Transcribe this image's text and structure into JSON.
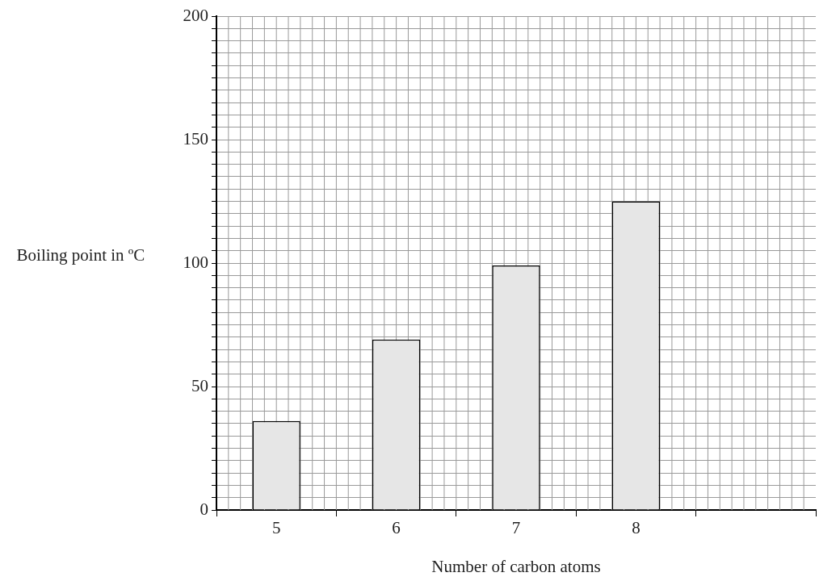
{
  "chart_data": {
    "type": "bar",
    "xlabel": "Number of carbon atoms",
    "ylabel": "Boiling point in ºC",
    "categories": [
      "5",
      "6",
      "7",
      "8",
      null
    ],
    "values": [
      36,
      69,
      99,
      125,
      null
    ],
    "color": "#e6e6e6",
    "ylim": [
      0,
      200
    ],
    "yticks": [
      0,
      {
        "value": 5,
        "label": null
      },
      {
        "value": 10,
        "label": null
      },
      {
        "value": 15,
        "label": null
      },
      {
        "value": 20,
        "label": null
      },
      {
        "value": 25,
        "label": null
      },
      {
        "value": 30,
        "label": null
      },
      {
        "value": 35,
        "label": null
      },
      {
        "value": 40,
        "label": null
      },
      {
        "value": 45,
        "label": null
      },
      50,
      {
        "value": 55,
        "label": null
      },
      {
        "value": 60,
        "label": null
      },
      {
        "value": 65,
        "label": null
      },
      {
        "value": 70,
        "label": null
      },
      {
        "value": 75,
        "label": null
      },
      {
        "value": 80,
        "label": null
      },
      {
        "value": 85,
        "label": null
      },
      {
        "value": 90,
        "label": null
      },
      {
        "value": 95,
        "label": null
      },
      100,
      {
        "value": 105,
        "label": null
      },
      {
        "value": 110,
        "label": null
      },
      {
        "value": 115,
        "label": null
      },
      {
        "value": 120,
        "label": null
      },
      {
        "value": 125,
        "label": null
      },
      {
        "value": 130,
        "label": null
      },
      {
        "value": 135,
        "label": null
      },
      {
        "value": 140,
        "label": null
      },
      {
        "value": 145,
        "label": null
      },
      150,
      {
        "value": 155,
        "label": null
      },
      {
        "value": 160,
        "label": null
      },
      {
        "value": 165,
        "label": null
      },
      {
        "value": 170,
        "label": null
      },
      {
        "value": 175,
        "label": null
      },
      {
        "value": 180,
        "label": null
      },
      {
        "value": 185,
        "label": null
      },
      {
        "value": 190,
        "label": null
      },
      {
        "value": 195,
        "label": null
      },
      200
    ],
    "grid": true
  }
}
